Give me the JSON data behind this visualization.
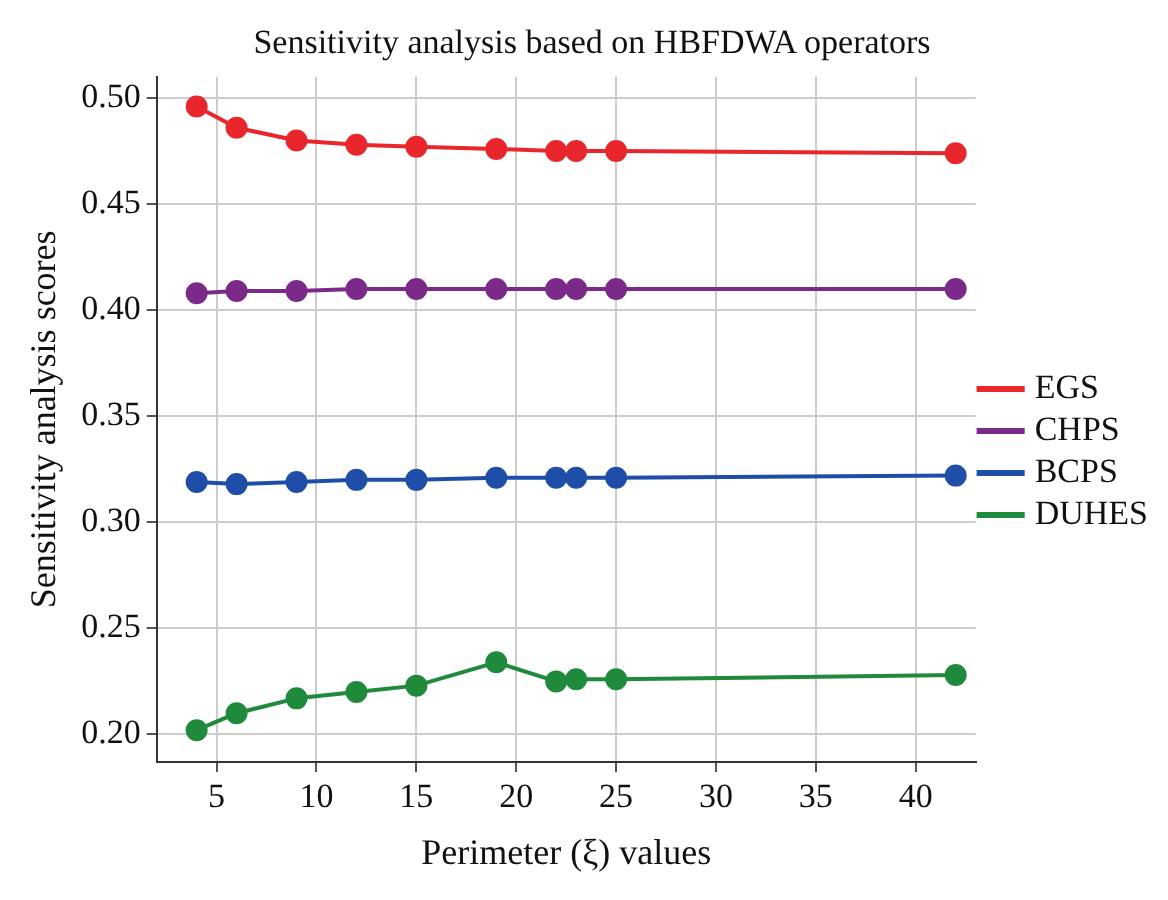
{
  "chart_data": {
    "type": "line",
    "title": "Sensitivity analysis based on HBFDWA operators",
    "xlabel": "Perimeter (ξ) values",
    "ylabel": "Sensitivity analysis scores",
    "x": [
      4,
      6,
      9,
      12,
      15,
      19,
      22,
      23,
      25,
      42
    ],
    "series": [
      {
        "name": "EGS",
        "color": "#e8262b",
        "values": [
          0.496,
          0.486,
          0.48,
          0.478,
          0.477,
          0.476,
          0.475,
          0.475,
          0.475,
          0.474
        ]
      },
      {
        "name": "CHPS",
        "color": "#7b2a8a",
        "values": [
          0.408,
          0.409,
          0.409,
          0.41,
          0.41,
          0.41,
          0.41,
          0.41,
          0.41,
          0.41
        ]
      },
      {
        "name": "BCPS",
        "color": "#1f4ea8",
        "values": [
          0.319,
          0.318,
          0.319,
          0.32,
          0.32,
          0.321,
          0.321,
          0.321,
          0.321,
          0.322
        ]
      },
      {
        "name": "DUHES",
        "color": "#1f8a3c",
        "values": [
          0.202,
          0.21,
          0.217,
          0.22,
          0.223,
          0.234,
          0.225,
          0.226,
          0.226,
          0.228
        ]
      }
    ],
    "xlim": [
      2,
      43
    ],
    "xticks": [
      5,
      10,
      15,
      20,
      25,
      30,
      35,
      40
    ],
    "ylim": [
      0.187,
      0.51
    ],
    "yticks": [
      {
        "value": 0.2,
        "label": "0.20"
      },
      {
        "value": 0.25,
        "label": "0.25"
      },
      {
        "value": 0.3,
        "label": "0.30"
      },
      {
        "value": 0.35,
        "label": "0.35"
      },
      {
        "value": 0.4,
        "label": "0.40"
      },
      {
        "value": 0.45,
        "label": "0.45"
      },
      {
        "value": 0.5,
        "label": "0.50"
      }
    ],
    "grid": true,
    "legend": "right",
    "marker": "circle",
    "line_style": "solid"
  }
}
